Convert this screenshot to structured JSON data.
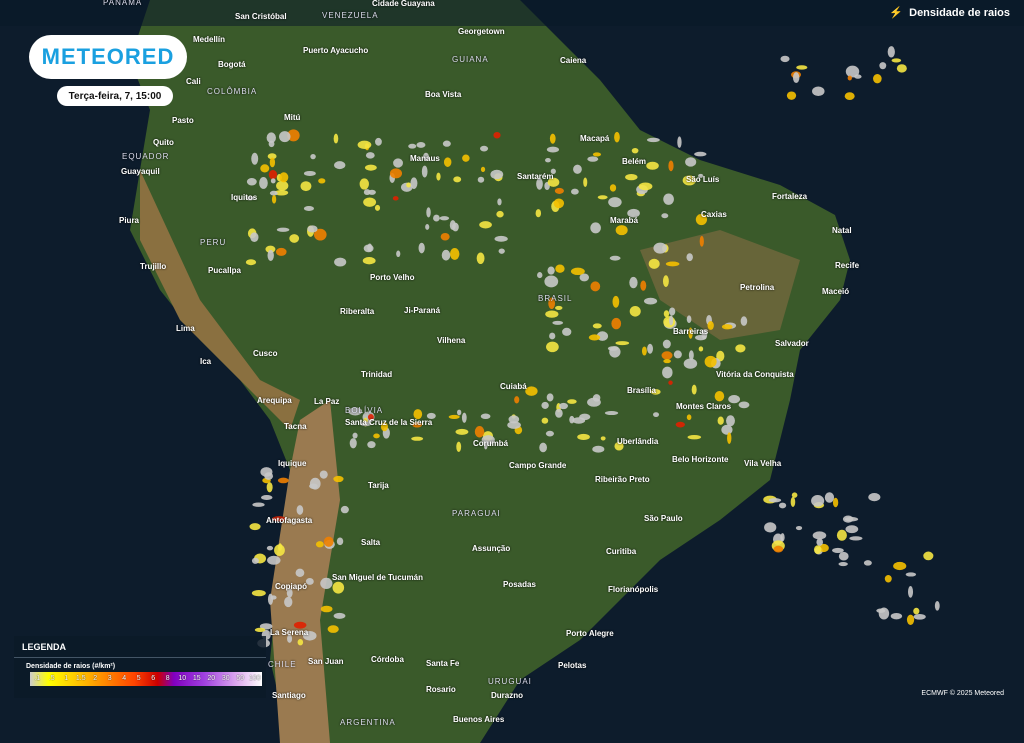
{
  "header": {
    "layer_label": "Densidade de raios",
    "layer_icon": "lightning-icon"
  },
  "logo": "METEORED",
  "date": "Terça-feira, 7, 15:00",
  "countries": [
    "PANAMÁ",
    "VENEZUELA",
    "COLÔMBIA",
    "GUIANA",
    "EQUADOR",
    "PERU",
    "BRASIL",
    "BOLÍVIA",
    "PARAGUAI",
    "CHILE",
    "ARGENTINA",
    "URUGUAI"
  ],
  "cities": [
    "San Cristóbal",
    "Cidade Guayana",
    "Georgetown",
    "Medellín",
    "Puerto Ayacucho",
    "Caiena",
    "Bogotá",
    "Cali",
    "Boa Vista",
    "Pasto",
    "Mitú",
    "Macapá",
    "Quito",
    "Guayaquil",
    "Belém",
    "São Luís",
    "Manaus",
    "Santarém",
    "Fortaleza",
    "Iquitos",
    "Caxias",
    "Marabá",
    "Natal",
    "Piura",
    "Trujillo",
    "Pucallpa",
    "Recife",
    "Porto Velho",
    "Petrolina",
    "Maceió",
    "Riberalta",
    "Ji-Paraná",
    "Barreiras",
    "Lima",
    "Vilhena",
    "Salvador",
    "Cusco",
    "Ica",
    "Trinidad",
    "Cuiabá",
    "Vitória da Conquista",
    "Brasília",
    "Arequipa",
    "La Paz",
    "Montes Claros",
    "Tacna",
    "Santa Cruz de la Sierra",
    "Corumbá",
    "Uberlândia",
    "Iquique",
    "Campo Grande",
    "Belo Horizonte",
    "Vila Velha",
    "Ribeirão Preto",
    "Tarija",
    "São Paulo",
    "Antofagasta",
    "Salta",
    "Curitiba",
    "Assunção",
    "San Miguel de Tucumán",
    "Posadas",
    "Copiapó",
    "Florianópolis",
    "La Serena",
    "Porto Alegre",
    "San Juan",
    "Córdoba",
    "Santa Fe",
    "Pelotas",
    "Rosario",
    "Santiago",
    "Durazno",
    "Buenos Aires"
  ],
  "legend": {
    "title": "LEGENDA",
    "subtitle": "Densidade de raios (#/km²)",
    "values": [
      ".1",
      ".5",
      "1",
      "1.5",
      "2",
      "3",
      "4",
      "5",
      "6",
      "8",
      "10",
      "15",
      "20",
      "30",
      "50",
      "100"
    ],
    "colors": [
      "#cccccc",
      "#ffff00",
      "#ffb000",
      "#ff4400",
      "#cc0000",
      "#8000c0",
      "#e0b0f0",
      "#ffffff"
    ]
  },
  "credit": "ECMWF © 2025 Meteored"
}
